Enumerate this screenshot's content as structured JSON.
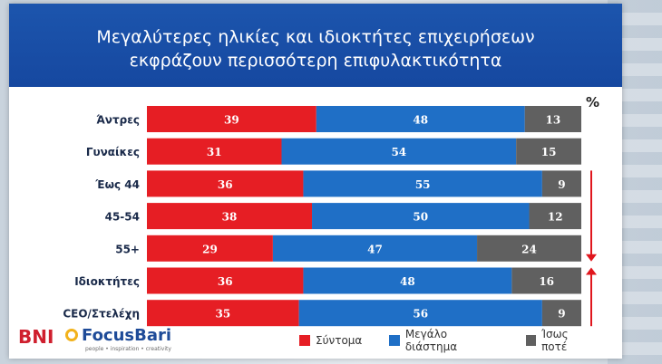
{
  "title": "Μεγαλύτερες ηλικίες και ιδιοκτήτες επιχειρήσεων εκφράζουν περισσότερη επιφυλακτικότητα",
  "unit_label": "%",
  "colors": {
    "short_term": "#e61e24",
    "long_term": "#1f6fc6",
    "maybe_never": "#606060",
    "arrow": "#e0161d"
  },
  "legend": [
    {
      "name": "Σύντομα",
      "color": "#e61e24"
    },
    {
      "name": "Μεγάλο διάστημα",
      "color": "#1f6fc6"
    },
    {
      "name": "Ίσως ποτέ",
      "color": "#606060"
    }
  ],
  "logos": {
    "bni": "BNI",
    "focusbari": "FocusBari",
    "focusbari_tagline": "people • inspiration • creativity"
  },
  "chart_data": {
    "type": "bar",
    "orientation": "horizontal",
    "stacked": true,
    "title": "Μεγαλύτερες ηλικίες και ιδιοκτήτες επιχειρήσεων εκφράζουν περισσότερη επιφυλακτικότητα",
    "categories": [
      "Άντρες",
      "Γυναίκες",
      "Έως 44",
      "45-54",
      "55+",
      "Ιδιοκτήτες",
      "CEO/Στελέχη"
    ],
    "series": [
      {
        "name": "Σύντομα",
        "values": [
          39,
          31,
          36,
          38,
          29,
          36,
          35
        ]
      },
      {
        "name": "Μεγάλο διάστημα",
        "values": [
          48,
          54,
          55,
          50,
          47,
          48,
          56
        ]
      },
      {
        "name": "Ίσως ποτέ",
        "values": [
          13,
          15,
          9,
          12,
          24,
          16,
          9
        ]
      }
    ],
    "xlim": [
      0,
      100
    ],
    "legend_position": "bottom",
    "grid": false
  }
}
